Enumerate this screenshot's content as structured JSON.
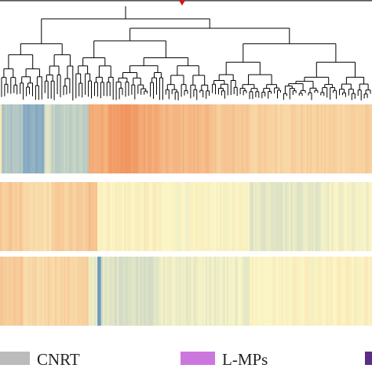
{
  "chart_data": {
    "type": "heatmap",
    "title": "",
    "colors": {
      "low": "#4f86c0",
      "mid": "#fbf6c6",
      "high": "#ee7b44",
      "legend_cnrt": "#bbbbbb",
      "legend_lmps": "#cc77dd",
      "legend_third": "#5a2e87",
      "dendrogram": "#000000",
      "marker": "#dd1111"
    },
    "legend": [
      {
        "label": "CNRT",
        "color": "#bbbbbb"
      },
      {
        "label": "L-MPs",
        "color": "#cc77dd"
      },
      {
        "label": "",
        "color": "#5a2e87"
      }
    ],
    "columns_approx": 210,
    "rows": [
      {
        "name": "",
        "segments": [
          {
            "start": 0.0,
            "end": 0.005,
            "value": 0.1
          },
          {
            "start": 0.005,
            "end": 0.06,
            "value": -0.45
          },
          {
            "start": 0.06,
            "end": 0.12,
            "value": -0.65
          },
          {
            "start": 0.12,
            "end": 0.14,
            "value": -0.2
          },
          {
            "start": 0.14,
            "end": 0.24,
            "value": -0.35
          },
          {
            "start": 0.24,
            "end": 0.29,
            "value": 0.6
          },
          {
            "start": 0.29,
            "end": 0.37,
            "value": 0.75
          },
          {
            "start": 0.37,
            "end": 0.43,
            "value": 0.62
          },
          {
            "start": 0.43,
            "end": 0.56,
            "value": 0.5
          },
          {
            "start": 0.56,
            "end": 0.67,
            "value": 0.38
          },
          {
            "start": 0.67,
            "end": 0.86,
            "value": 0.3
          },
          {
            "start": 0.86,
            "end": 1.0,
            "value": 0.3
          }
        ]
      },
      {
        "name": "",
        "segments": [
          {
            "start": 0.0,
            "end": 0.06,
            "value": 0.35
          },
          {
            "start": 0.06,
            "end": 0.14,
            "value": 0.2
          },
          {
            "start": 0.14,
            "end": 0.24,
            "value": 0.32
          },
          {
            "start": 0.24,
            "end": 0.26,
            "value": 0.45
          },
          {
            "start": 0.26,
            "end": 0.43,
            "value": 0.05
          },
          {
            "start": 0.43,
            "end": 0.67,
            "value": 0.0
          },
          {
            "start": 0.67,
            "end": 0.86,
            "value": -0.12
          },
          {
            "start": 0.86,
            "end": 1.0,
            "value": -0.04
          }
        ]
      },
      {
        "name": "",
        "segments": [
          {
            "start": 0.0,
            "end": 0.06,
            "value": 0.35
          },
          {
            "start": 0.06,
            "end": 0.12,
            "value": 0.22
          },
          {
            "start": 0.12,
            "end": 0.24,
            "value": 0.28
          },
          {
            "start": 0.24,
            "end": 0.262,
            "value": -0.1
          },
          {
            "start": 0.262,
            "end": 0.272,
            "value": -0.8
          },
          {
            "start": 0.272,
            "end": 0.43,
            "value": -0.18
          },
          {
            "start": 0.43,
            "end": 0.67,
            "value": -0.08
          },
          {
            "start": 0.67,
            "end": 0.86,
            "value": 0.02
          },
          {
            "start": 0.86,
            "end": 1.0,
            "value": 0.04
          }
        ]
      }
    ],
    "value_range": [
      -1,
      1
    ]
  }
}
